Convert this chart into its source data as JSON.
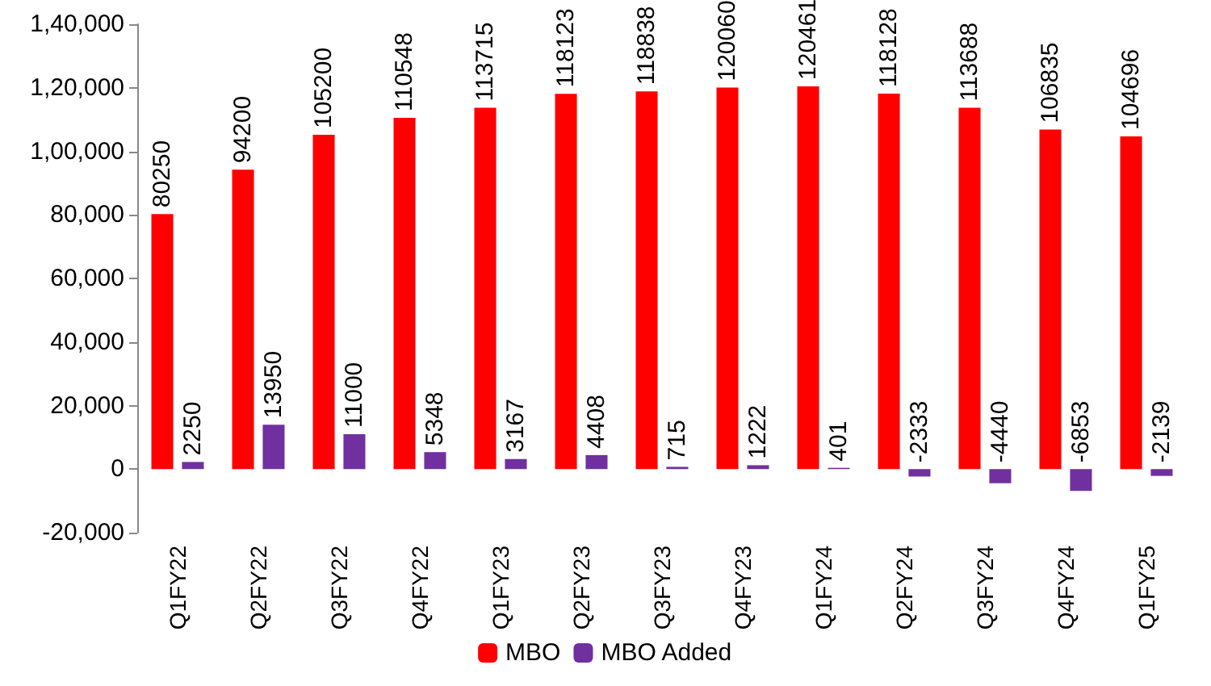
{
  "chart_data": {
    "type": "bar",
    "categories": [
      "Q1FY22",
      "Q2FY22",
      "Q3FY22",
      "Q4FY22",
      "Q1FY23",
      "Q2FY23",
      "Q3FY23",
      "Q4FY23",
      "Q1FY24",
      "Q2FY24",
      "Q3FY24",
      "Q4FY24",
      "Q1FY25"
    ],
    "series": [
      {
        "name": "MBO",
        "color": "#ff0000",
        "values": [
          80250,
          94200,
          105200,
          110548,
          113715,
          118123,
          118838,
          120060,
          120461,
          118128,
          113688,
          106835,
          104696
        ]
      },
      {
        "name": "MBO Added",
        "color": "#7030a0",
        "values": [
          2250,
          13950,
          11000,
          5348,
          3167,
          4408,
          715,
          1222,
          401,
          -2333,
          -4440,
          -6853,
          -2139
        ]
      }
    ],
    "ylim": [
      -20000,
      140000
    ],
    "yticks": [
      {
        "value": -20000,
        "label": "-20,000"
      },
      {
        "value": 0,
        "label": "0"
      },
      {
        "value": 20000,
        "label": "20,000"
      },
      {
        "value": 40000,
        "label": "40,000"
      },
      {
        "value": 60000,
        "label": "60,000"
      },
      {
        "value": 80000,
        "label": "80,000"
      },
      {
        "value": 100000,
        "label": "1,00,000"
      },
      {
        "value": 120000,
        "label": "1,20,000"
      },
      {
        "value": 140000,
        "label": "1,40,000"
      }
    ],
    "data_labels": true,
    "grid": false,
    "legend": "bottom"
  }
}
